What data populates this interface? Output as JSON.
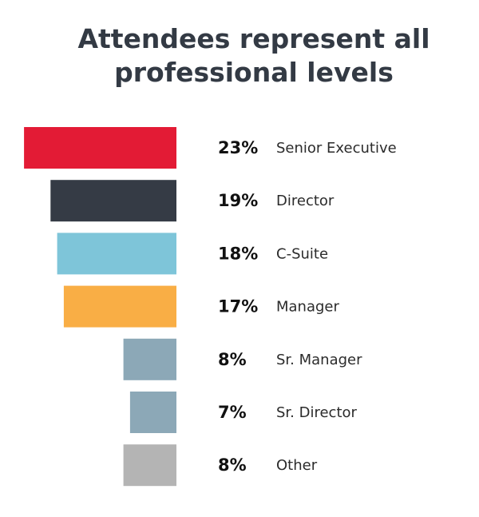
{
  "chart_data": {
    "type": "bar",
    "orientation": "horizontal",
    "title_lines": [
      "Attendees represent all",
      "professional levels"
    ],
    "categories": [
      "Senior Executive",
      "Director",
      "C-Suite",
      "Manager",
      "Sr. Manager",
      "Sr. Director",
      "Other"
    ],
    "values": [
      23,
      19,
      18,
      17,
      8,
      7,
      8
    ],
    "value_labels": [
      "23%",
      "19%",
      "18%",
      "17%",
      "8%",
      "7%",
      "8%"
    ],
    "unit": "%",
    "colors": [
      "#e31b35",
      "#353b45",
      "#7ec5d9",
      "#f9ae45",
      "#8ca8b7",
      "#8ca8b7",
      "#b4b4b4"
    ],
    "xlabel": "",
    "ylabel": "",
    "grid": false,
    "legend": "none"
  }
}
